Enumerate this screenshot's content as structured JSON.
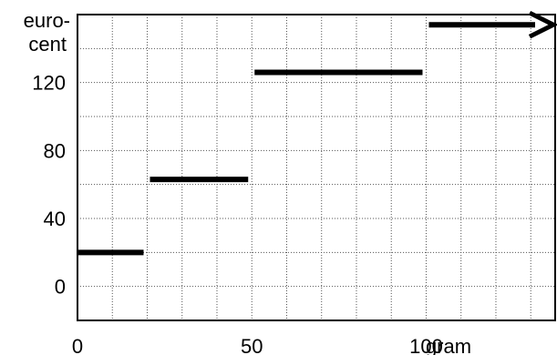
{
  "chart_data": {
    "type": "line",
    "title": "",
    "xlabel": "gram",
    "ylabel": "euro-cent",
    "ylabel_lines": [
      "euro-",
      "cent"
    ],
    "grid": true,
    "xlim": [
      0,
      137
    ],
    "ylim": [
      -20,
      160
    ],
    "x_ticks": [
      {
        "value": 0,
        "label": "0"
      },
      {
        "value": 50,
        "label": "50"
      },
      {
        "value": 100,
        "label": "100"
      }
    ],
    "y_ticks": [
      {
        "value": 0,
        "label": "0"
      },
      {
        "value": 40,
        "label": "40"
      },
      {
        "value": 80,
        "label": "80"
      },
      {
        "value": 120,
        "label": "120"
      }
    ],
    "steps": [
      {
        "x_start": 0,
        "x_end": 20,
        "y": 20
      },
      {
        "x_start": 20,
        "x_end": 50,
        "y": 63
      },
      {
        "x_start": 50,
        "x_end": 100,
        "y": 126
      },
      {
        "x_start": 100,
        "x_end": 137,
        "y": 154,
        "arrow": true
      }
    ]
  }
}
